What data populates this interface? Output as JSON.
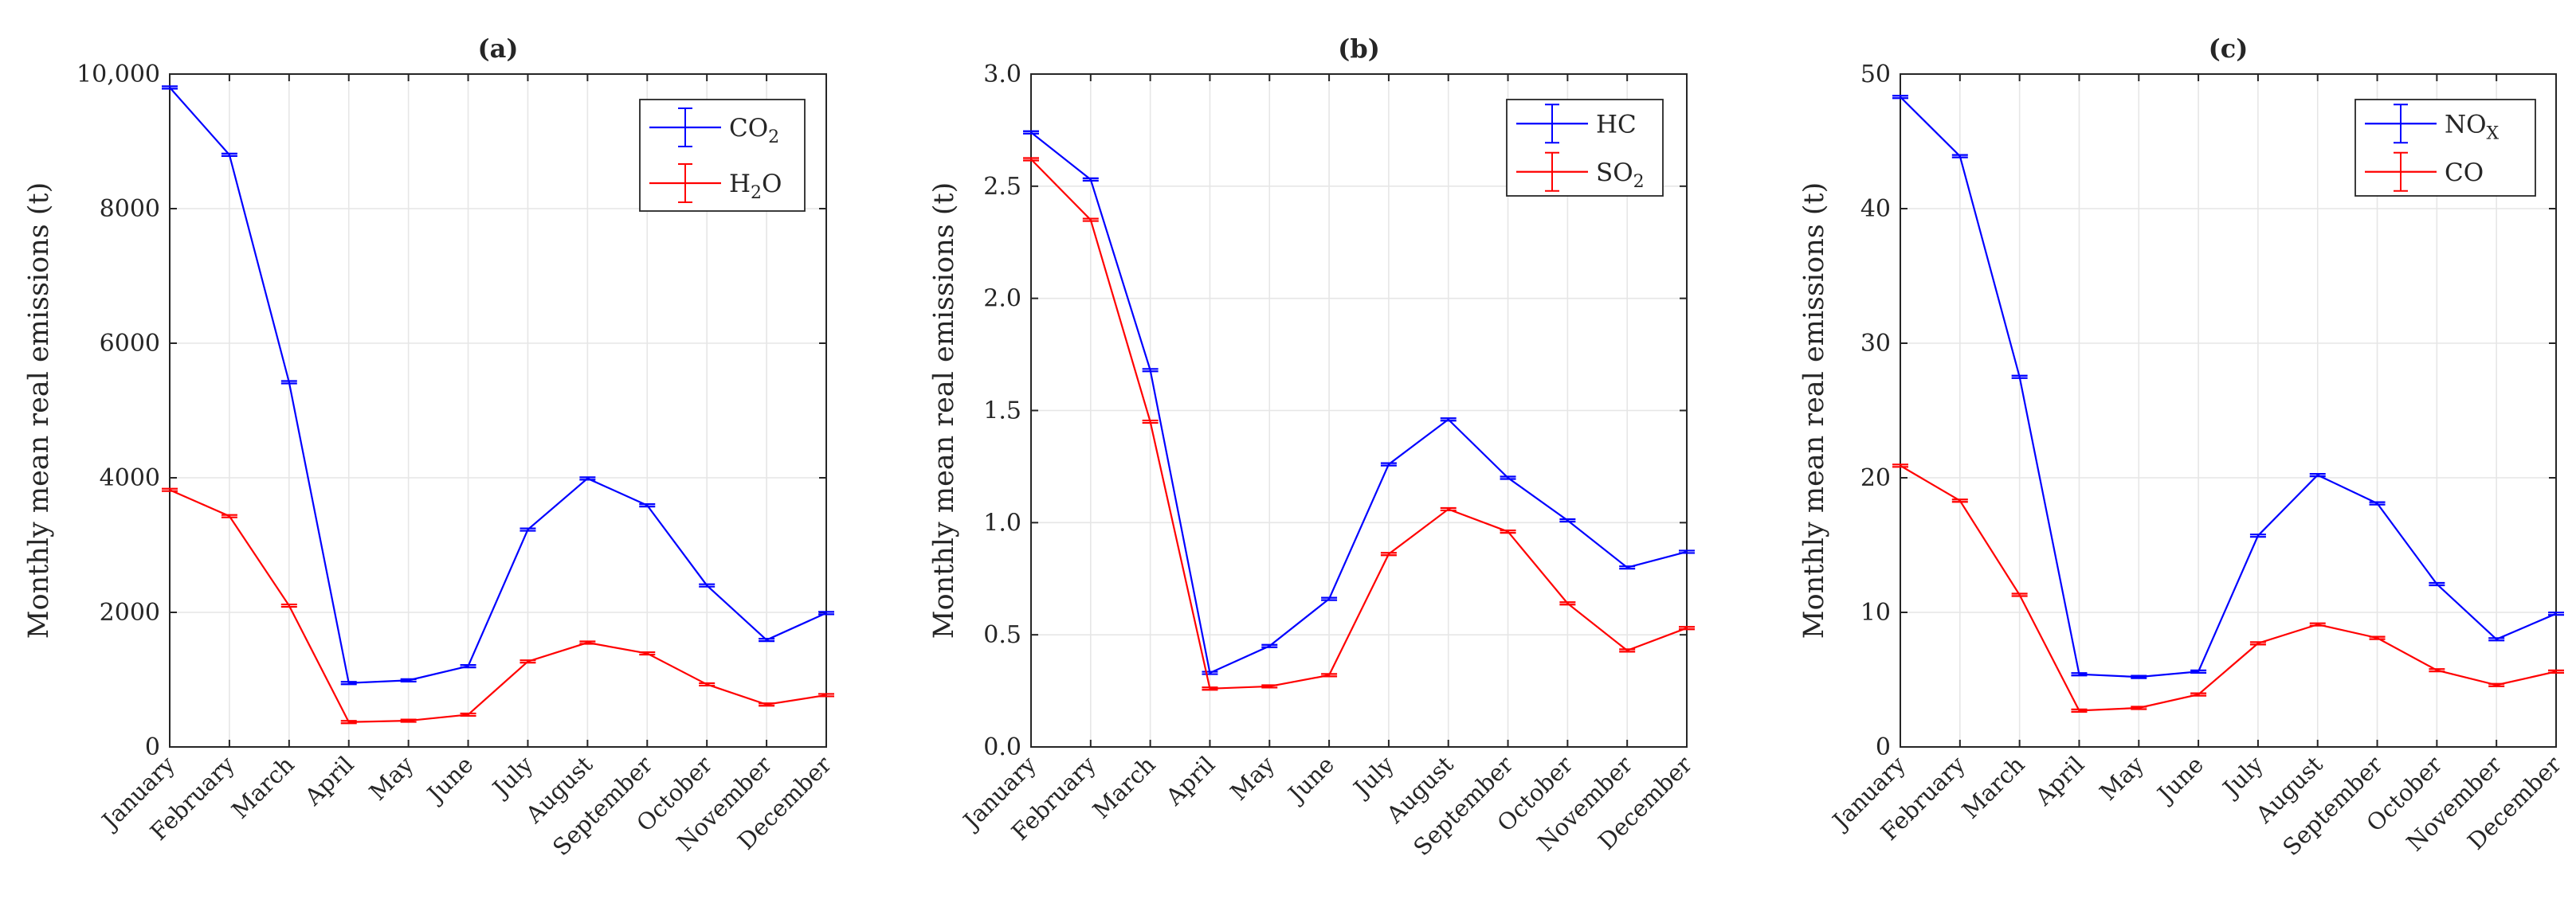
{
  "chart_data": [
    {
      "type": "line",
      "title": "(a)",
      "ylabel": "Monthly mean real emissions (t)",
      "xlabel": "",
      "categories": [
        "January",
        "February",
        "March",
        "April",
        "May",
        "June",
        "July",
        "August",
        "September",
        "October",
        "November",
        "December"
      ],
      "ylim": [
        0,
        10000
      ],
      "yticks": [
        0,
        2000,
        4000,
        6000,
        8000,
        10000
      ],
      "ytick_labels": [
        "0",
        "2000",
        "4000",
        "6000",
        "8000",
        "10,000"
      ],
      "grid": true,
      "legend_position": "top-right",
      "series": [
        {
          "name": "CO",
          "sub": "2",
          "color": "#0000ff",
          "values": [
            9800,
            8800,
            5420,
            950,
            990,
            1200,
            3230,
            3990,
            3590,
            2400,
            1590,
            1990
          ]
        },
        {
          "name": "H",
          "sub": "2",
          "suffix": "O",
          "color": "#ff0000",
          "values": [
            3820,
            3430,
            2100,
            370,
            390,
            480,
            1270,
            1550,
            1390,
            930,
            630,
            770
          ]
        }
      ]
    },
    {
      "type": "line",
      "title": "(b)",
      "ylabel": "Monthly mean real emissions (t)",
      "xlabel": "",
      "categories": [
        "January",
        "February",
        "March",
        "April",
        "May",
        "June",
        "July",
        "August",
        "September",
        "October",
        "November",
        "December"
      ],
      "ylim": [
        0,
        3
      ],
      "yticks": [
        0,
        0.5,
        1,
        1.5,
        2,
        2.5,
        3
      ],
      "ytick_labels": [
        "0.0",
        "0.5",
        "1.0",
        "1.5",
        "2.0",
        "2.5",
        "3.0"
      ],
      "grid": true,
      "legend_position": "top-right",
      "series": [
        {
          "name": "HC",
          "color": "#0000ff",
          "values": [
            2.74,
            2.53,
            1.68,
            0.33,
            0.45,
            0.66,
            1.26,
            1.46,
            1.2,
            1.01,
            0.8,
            0.87
          ]
        },
        {
          "name": "SO",
          "sub": "2",
          "color": "#ff0000",
          "values": [
            2.62,
            2.35,
            1.45,
            0.26,
            0.27,
            0.32,
            0.86,
            1.06,
            0.96,
            0.64,
            0.43,
            0.53
          ]
        }
      ]
    },
    {
      "type": "line",
      "title": "(c)",
      "ylabel": "Monthly mean real emissions (t)",
      "xlabel": "",
      "categories": [
        "January",
        "February",
        "March",
        "April",
        "May",
        "June",
        "July",
        "August",
        "September",
        "October",
        "November",
        "December"
      ],
      "ylim": [
        0,
        50
      ],
      "yticks": [
        0,
        10,
        20,
        30,
        40,
        50
      ],
      "ytick_labels": [
        "0",
        "10",
        "20",
        "30",
        "40",
        "50"
      ],
      "grid": true,
      "legend_position": "top-right",
      "series": [
        {
          "name": "NO",
          "sub": "X",
          "color": "#0000ff",
          "values": [
            48.3,
            43.9,
            27.5,
            5.4,
            5.2,
            5.6,
            15.7,
            20.2,
            18.1,
            12.1,
            8.0,
            9.9
          ]
        },
        {
          "name": "CO",
          "color": "#ff0000",
          "values": [
            20.9,
            18.3,
            11.3,
            2.7,
            2.9,
            3.9,
            7.7,
            9.1,
            8.1,
            5.7,
            4.6,
            5.6
          ]
        }
      ]
    }
  ]
}
